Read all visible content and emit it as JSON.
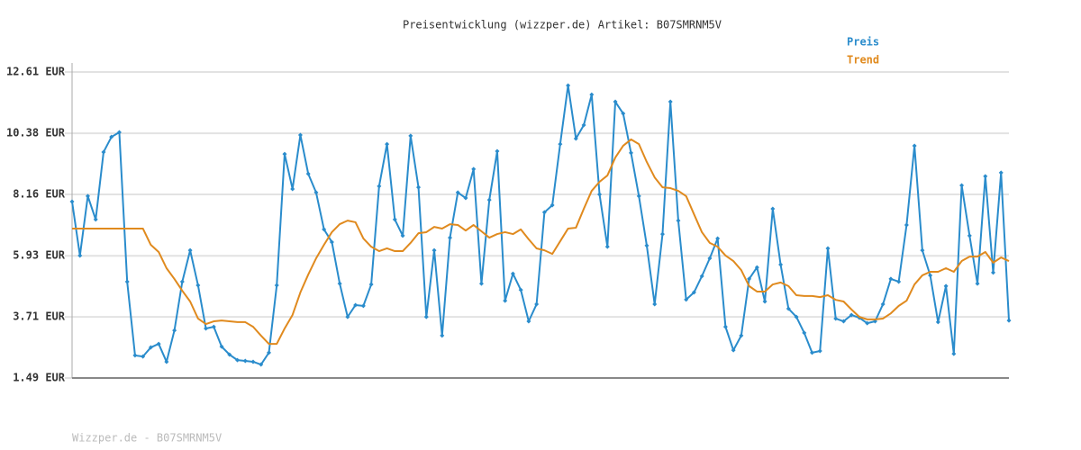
{
  "chart_data": {
    "type": "line",
    "title": "Preisentwicklung (wizzper.de) Artikel: B07SMRNM5V",
    "ylim": [
      1.49,
      12.61
    ],
    "yticks": [
      {
        "value": 1.49,
        "label": "1.49 EUR"
      },
      {
        "value": 3.71,
        "label": "3.71 EUR"
      },
      {
        "value": 5.93,
        "label": "5.93 EUR"
      },
      {
        "value": 8.16,
        "label": "8.16 EUR"
      },
      {
        "value": 10.38,
        "label": "10.38 EUR"
      },
      {
        "value": 12.61,
        "label": "12.61 EUR"
      }
    ],
    "grid": true,
    "legend": "top-right",
    "series": [
      {
        "name": "Preis",
        "color": "#2a8ccc",
        "markers": true,
        "values": [
          7.9,
          5.94,
          8.1,
          7.25,
          9.7,
          10.25,
          10.42,
          4.99,
          2.31,
          2.27,
          2.6,
          2.73,
          2.08,
          3.22,
          4.99,
          6.13,
          4.86,
          3.29,
          3.35,
          2.63,
          2.34,
          2.14,
          2.11,
          2.08,
          1.98,
          2.41,
          4.86,
          9.63,
          8.36,
          10.32,
          8.91,
          8.23,
          6.89,
          6.43,
          4.92,
          3.71,
          4.14,
          4.11,
          4.89,
          8.46,
          9.99,
          7.25,
          6.66,
          10.29,
          8.42,
          3.71,
          6.13,
          3.03,
          6.59,
          8.23,
          8.03,
          9.08,
          4.92,
          7.96,
          9.73,
          4.3,
          5.28,
          4.69,
          3.55,
          4.17,
          7.51,
          7.77,
          9.99,
          12.12,
          10.19,
          10.68,
          11.79,
          8.16,
          6.26,
          11.53,
          11.1,
          9.67,
          8.1,
          6.3,
          4.17,
          6.72,
          11.53,
          7.21,
          4.34,
          4.6,
          5.19,
          5.84,
          6.56,
          3.35,
          2.5,
          3.03,
          5.09,
          5.51,
          4.27,
          7.64,
          5.61,
          4.01,
          3.71,
          3.13,
          2.41,
          2.47,
          6.2,
          3.65,
          3.55,
          3.78,
          3.68,
          3.48,
          3.55,
          4.17,
          5.09,
          4.99,
          7.05,
          9.93,
          6.13,
          5.22,
          3.52,
          4.83,
          2.37,
          8.49,
          6.66,
          4.92,
          8.82,
          5.32,
          8.95,
          3.58
        ]
      },
      {
        "name": "Trend",
        "color": "#e08a1e",
        "markers": false,
        "values": [
          6.92,
          6.92,
          6.92,
          6.92,
          6.92,
          6.92,
          6.92,
          6.92,
          6.92,
          6.92,
          6.33,
          6.07,
          5.48,
          5.09,
          4.66,
          4.27,
          3.65,
          3.45,
          3.55,
          3.58,
          3.55,
          3.52,
          3.52,
          3.35,
          3.03,
          2.73,
          2.73,
          3.29,
          3.78,
          4.6,
          5.25,
          5.84,
          6.33,
          6.79,
          7.08,
          7.21,
          7.15,
          6.56,
          6.26,
          6.1,
          6.2,
          6.1,
          6.1,
          6.4,
          6.75,
          6.79,
          6.98,
          6.92,
          7.08,
          7.05,
          6.85,
          7.05,
          6.82,
          6.59,
          6.72,
          6.79,
          6.72,
          6.89,
          6.53,
          6.2,
          6.13,
          6.0,
          6.46,
          6.92,
          6.95,
          7.64,
          8.29,
          8.62,
          8.85,
          9.5,
          9.93,
          10.16,
          9.99,
          9.34,
          8.78,
          8.42,
          8.39,
          8.29,
          8.1,
          7.44,
          6.79,
          6.4,
          6.26,
          5.94,
          5.74,
          5.41,
          4.83,
          4.63,
          4.63,
          4.89,
          4.96,
          4.83,
          4.5,
          4.47,
          4.47,
          4.43,
          4.5,
          4.33,
          4.27,
          3.98,
          3.71,
          3.62,
          3.62,
          3.65,
          3.84,
          4.11,
          4.3,
          4.89,
          5.22,
          5.35,
          5.35,
          5.48,
          5.35,
          5.74,
          5.9,
          5.9,
          6.07,
          5.68,
          5.87,
          5.74
        ]
      }
    ]
  },
  "footer": "Wizzper.de - B07SMRNM5V"
}
